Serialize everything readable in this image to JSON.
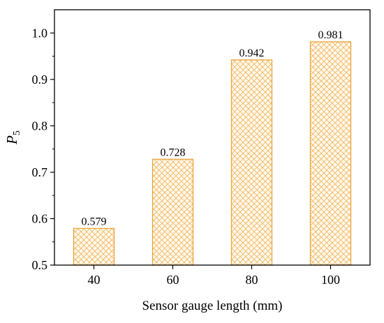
{
  "chart_data": {
    "type": "bar",
    "categories": [
      "40",
      "60",
      "80",
      "100"
    ],
    "values": [
      0.579,
      0.728,
      0.942,
      0.981
    ],
    "data_labels": [
      "0.579",
      "0.728",
      "0.942",
      "0.981"
    ],
    "xlabel": "Sensor gauge length (mm)",
    "ylabel": {
      "main": "P",
      "subscript": "5"
    },
    "ylim": [
      0.5,
      1.05
    ],
    "yticks": [
      "0.5",
      "0.6",
      "0.7",
      "0.8",
      "0.9",
      "1.0"
    ],
    "grid": false,
    "legend": "none",
    "bar_style": "crosshatch",
    "colors": {
      "bar_edge": "#E8A33A",
      "hatch": "#F0B860",
      "bar_fill": "#FFF8EC",
      "axis": "#000000"
    }
  }
}
